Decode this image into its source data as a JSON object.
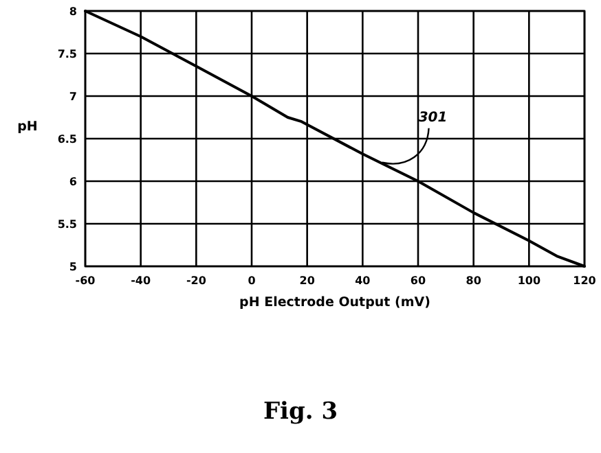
{
  "chart_data": {
    "type": "line",
    "xlabel": "pH Electrode Output (mV)",
    "ylabel": "pH",
    "x": [
      -60,
      -40,
      -20,
      0,
      13,
      18,
      40,
      60,
      80,
      100,
      110,
      120
    ],
    "series": [
      {
        "color": "#000000",
        "values": [
          8,
          7.7,
          7.35,
          7,
          6.75,
          6.7,
          6.32,
          6.0,
          5.63,
          5.3,
          5.12,
          5
        ]
      }
    ],
    "xlim": [
      -60,
      120
    ],
    "xticks": [
      -60,
      -40,
      -20,
      0,
      20,
      40,
      60,
      80,
      100,
      120
    ],
    "ylim": [
      5,
      8
    ],
    "yticks": [
      5,
      5.5,
      6,
      6.5,
      7,
      7.5,
      8
    ],
    "grid": true,
    "marker": "none",
    "line_style": "solid",
    "annotations": [
      {
        "text": "301",
        "x": 47,
        "y": 6.22
      },
      "Fig. 3"
    ]
  }
}
